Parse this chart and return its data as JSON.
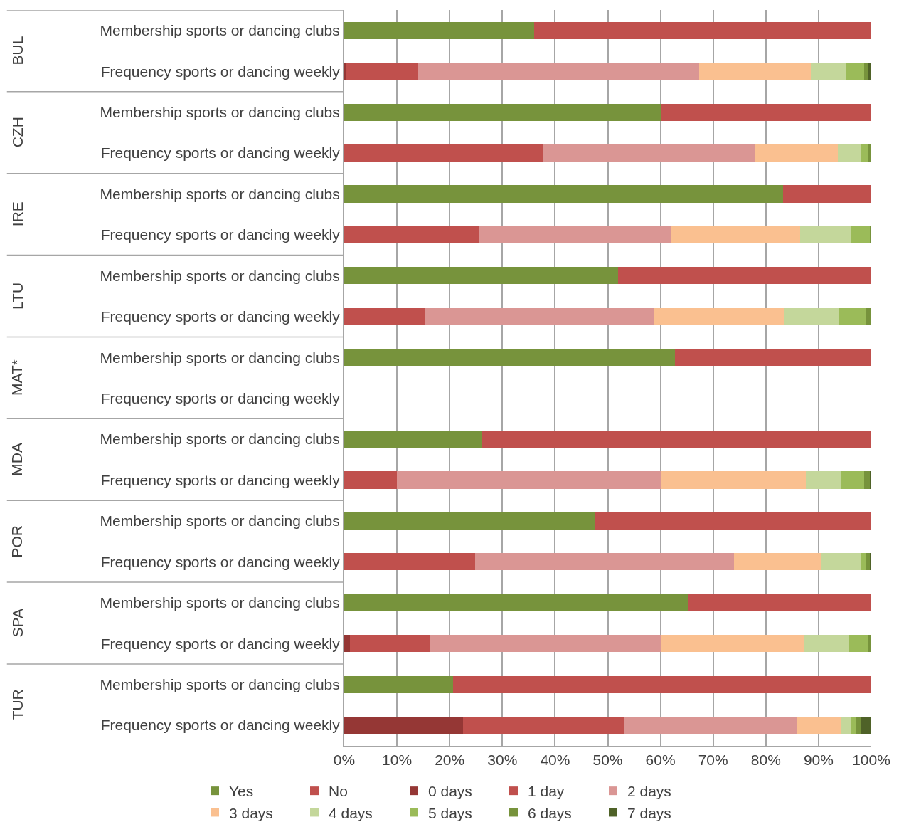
{
  "chart_data": {
    "type": "bar",
    "orientation": "horizontal",
    "stacked": true,
    "categories": [
      "Membership sports or dancing clubs",
      "Frequency sports or dancing weekly",
      "Membership sports or dancing clubs",
      "Frequency sports or dancing weekly",
      "Membership sports or dancing clubs",
      "Frequency sports or dancing weekly",
      "Membership sports or dancing clubs",
      "Frequency sports or dancing weekly",
      "Membership sports or dancing clubs",
      "Frequency sports or dancing weekly",
      "Membership sports or dancing clubs",
      "Frequency sports or dancing weekly",
      "Membership sports or dancing clubs",
      "Frequency sports or dancing weekly",
      "Membership sports or dancing clubs",
      "Frequency sports or dancing weekly",
      "Membership sports or dancing clubs",
      "Frequency sports or dancing weekly"
    ],
    "annotations": [
      "BUL",
      "CZH",
      "IRE",
      "LTU",
      "MAT*",
      "MDA",
      "POR",
      "SPA",
      "TUR"
    ],
    "series": [
      {
        "name": "Yes",
        "color": "#77933c",
        "values": [
          36,
          null,
          60.2,
          null,
          83.2,
          null,
          52,
          null,
          62.7,
          null,
          26,
          null,
          47.6,
          null,
          65.2,
          null,
          20.6,
          null
        ]
      },
      {
        "name": "No",
        "color": "#c0504d",
        "values": [
          64,
          null,
          39.8,
          null,
          16.8,
          null,
          48,
          null,
          37.3,
          null,
          74,
          null,
          52.4,
          null,
          34.8,
          null,
          79.4,
          null
        ]
      },
      {
        "name": "0 days",
        "color": "#953735",
        "values": [
          null,
          0.4,
          null,
          0,
          null,
          0,
          null,
          0,
          null,
          null,
          null,
          0,
          null,
          0,
          null,
          1.1,
          null,
          22.6
        ]
      },
      {
        "name": "1 day",
        "color": "#c0504d",
        "values": [
          null,
          13.6,
          null,
          37.6,
          null,
          25.5,
          null,
          15.4,
          null,
          null,
          null,
          10,
          null,
          24.8,
          null,
          15.1,
          null,
          30.5
        ]
      },
      {
        "name": "2 days",
        "color": "#da9694",
        "values": [
          null,
          53.4,
          null,
          40.3,
          null,
          36.6,
          null,
          43.5,
          null,
          null,
          null,
          50,
          null,
          49.1,
          null,
          43.8,
          null,
          32.7
        ]
      },
      {
        "name": "3 days",
        "color": "#fac090",
        "values": [
          null,
          21.1,
          null,
          15.8,
          null,
          24.4,
          null,
          24.6,
          null,
          null,
          null,
          27.6,
          null,
          16.5,
          null,
          27.2,
          null,
          8.5
        ]
      },
      {
        "name": "4 days",
        "color": "#c4d79b",
        "values": [
          null,
          6.6,
          null,
          4.3,
          null,
          9.7,
          null,
          10.4,
          null,
          null,
          null,
          6.7,
          null,
          7.6,
          null,
          8.6,
          null,
          1.9
        ]
      },
      {
        "name": "5 days",
        "color": "#9bbb59",
        "values": [
          null,
          3.6,
          null,
          1.5,
          null,
          3.5,
          null,
          5.2,
          null,
          null,
          null,
          4.4,
          null,
          1.1,
          null,
          3.7,
          null,
          1
        ]
      },
      {
        "name": "6 days",
        "color": "#77933c",
        "values": [
          null,
          0.6,
          null,
          0.3,
          null,
          0.3,
          null,
          0.9,
          null,
          null,
          null,
          1,
          null,
          0.6,
          null,
          0.3,
          null,
          0.8
        ]
      },
      {
        "name": "7 days",
        "color": "#4f6228",
        "values": [
          null,
          0.7,
          null,
          0.4,
          null,
          0,
          null,
          0,
          null,
          null,
          null,
          0.3,
          null,
          0.3,
          null,
          0.4,
          null,
          2
        ]
      }
    ],
    "xlim": [
      0,
      100
    ],
    "xticks": [
      {
        "value": 0,
        "label": "0%"
      },
      {
        "value": 10,
        "label": "10%"
      },
      {
        "value": 20,
        "label": "20%"
      },
      {
        "value": 30,
        "label": "30%"
      },
      {
        "value": 40,
        "label": "40%"
      },
      {
        "value": 50,
        "label": "50%"
      },
      {
        "value": 60,
        "label": "60%"
      },
      {
        "value": 70,
        "label": "70%"
      },
      {
        "value": 80,
        "label": "80%"
      },
      {
        "value": 90,
        "label": "90%"
      },
      {
        "value": 100,
        "label": "100%"
      }
    ],
    "grid": "x",
    "legend": "bottom"
  }
}
